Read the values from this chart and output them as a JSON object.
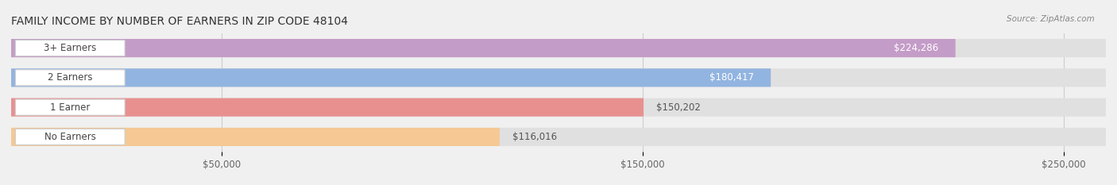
{
  "title": "FAMILY INCOME BY NUMBER OF EARNERS IN ZIP CODE 48104",
  "source": "Source: ZipAtlas.com",
  "categories": [
    "No Earners",
    "1 Earner",
    "2 Earners",
    "3+ Earners"
  ],
  "values": [
    116016,
    150202,
    180417,
    224286
  ],
  "labels": [
    "$116,016",
    "$150,202",
    "$180,417",
    "$224,286"
  ],
  "bar_colors": [
    "#f5c894",
    "#e89090",
    "#92b4e0",
    "#c49cc8"
  ],
  "bar_edge_colors": [
    "#e8a855",
    "#d96060",
    "#6090d0",
    "#a070b0"
  ],
  "background_color": "#f0f0f0",
  "bar_bg_color": "#e8e8e8",
  "xlim": [
    0,
    260000
  ],
  "xticks": [
    50000,
    150000,
    250000
  ],
  "xtick_labels": [
    "$50,000",
    "$150,000",
    "$250,000"
  ],
  "title_fontsize": 10,
  "label_fontsize": 8.5,
  "bar_height": 0.62,
  "fig_width": 14.06,
  "fig_height": 2.33
}
